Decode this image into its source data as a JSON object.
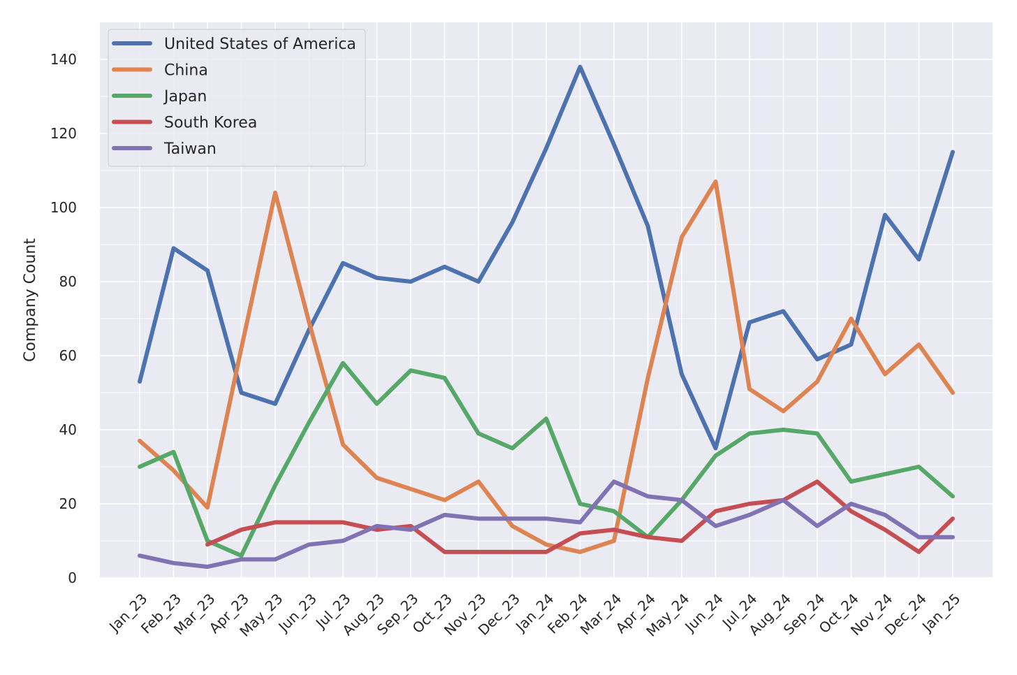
{
  "chart_data": {
    "type": "line",
    "title": "",
    "xlabel": "",
    "ylabel": "Company Count",
    "ylim": [
      0,
      150
    ],
    "yticks": [
      0,
      20,
      40,
      60,
      80,
      100,
      120,
      140
    ],
    "grid": true,
    "legend_position": "top-left",
    "background": "#eaeaf2",
    "categories": [
      "Jan_23",
      "Feb_23",
      "Mar_23",
      "Apr_23",
      "May_23",
      "Jun_23",
      "Jul_23",
      "Aug_23",
      "Sep_23",
      "Oct_23",
      "Nov_23",
      "Dec_23",
      "Jan_24",
      "Feb_24",
      "Mar_24",
      "Apr_24",
      "May_24",
      "Jun_24",
      "Jul_24",
      "Aug_24",
      "Sep_24",
      "Oct_24",
      "Nov_24",
      "Dec_24",
      "Jan_25"
    ],
    "series": [
      {
        "name": "United States of America",
        "color": "#4c72b0",
        "values": [
          53,
          89,
          83,
          50,
          47,
          67,
          85,
          81,
          80,
          84,
          80,
          96,
          116,
          138,
          117,
          95,
          55,
          35,
          69,
          72,
          59,
          63,
          98,
          86,
          115
        ]
      },
      {
        "name": "China",
        "color": "#dd8452",
        "values": [
          37,
          29,
          19,
          62,
          104,
          69,
          36,
          27,
          24,
          21,
          26,
          14,
          9,
          7,
          10,
          54,
          92,
          107,
          51,
          45,
          53,
          70,
          55,
          63,
          50
        ]
      },
      {
        "name": "Japan",
        "color": "#55a868",
        "values": [
          30,
          34,
          10,
          6,
          25,
          42,
          58,
          47,
          56,
          54,
          39,
          35,
          43,
          20,
          18,
          11,
          21,
          33,
          39,
          40,
          39,
          26,
          28,
          30,
          22
        ]
      },
      {
        "name": "South Korea",
        "color": "#c44e52",
        "values": [
          null,
          null,
          9,
          13,
          15,
          15,
          15,
          13,
          14,
          7,
          7,
          7,
          7,
          12,
          13,
          11,
          10,
          18,
          20,
          21,
          26,
          18,
          13,
          7,
          16
        ]
      },
      {
        "name": "Taiwan",
        "color": "#8172b3",
        "values": [
          6,
          4,
          3,
          5,
          5,
          9,
          10,
          14,
          13,
          17,
          16,
          16,
          16,
          15,
          26,
          22,
          21,
          14,
          17,
          21,
          14,
          20,
          17,
          11,
          11
        ]
      }
    ]
  }
}
